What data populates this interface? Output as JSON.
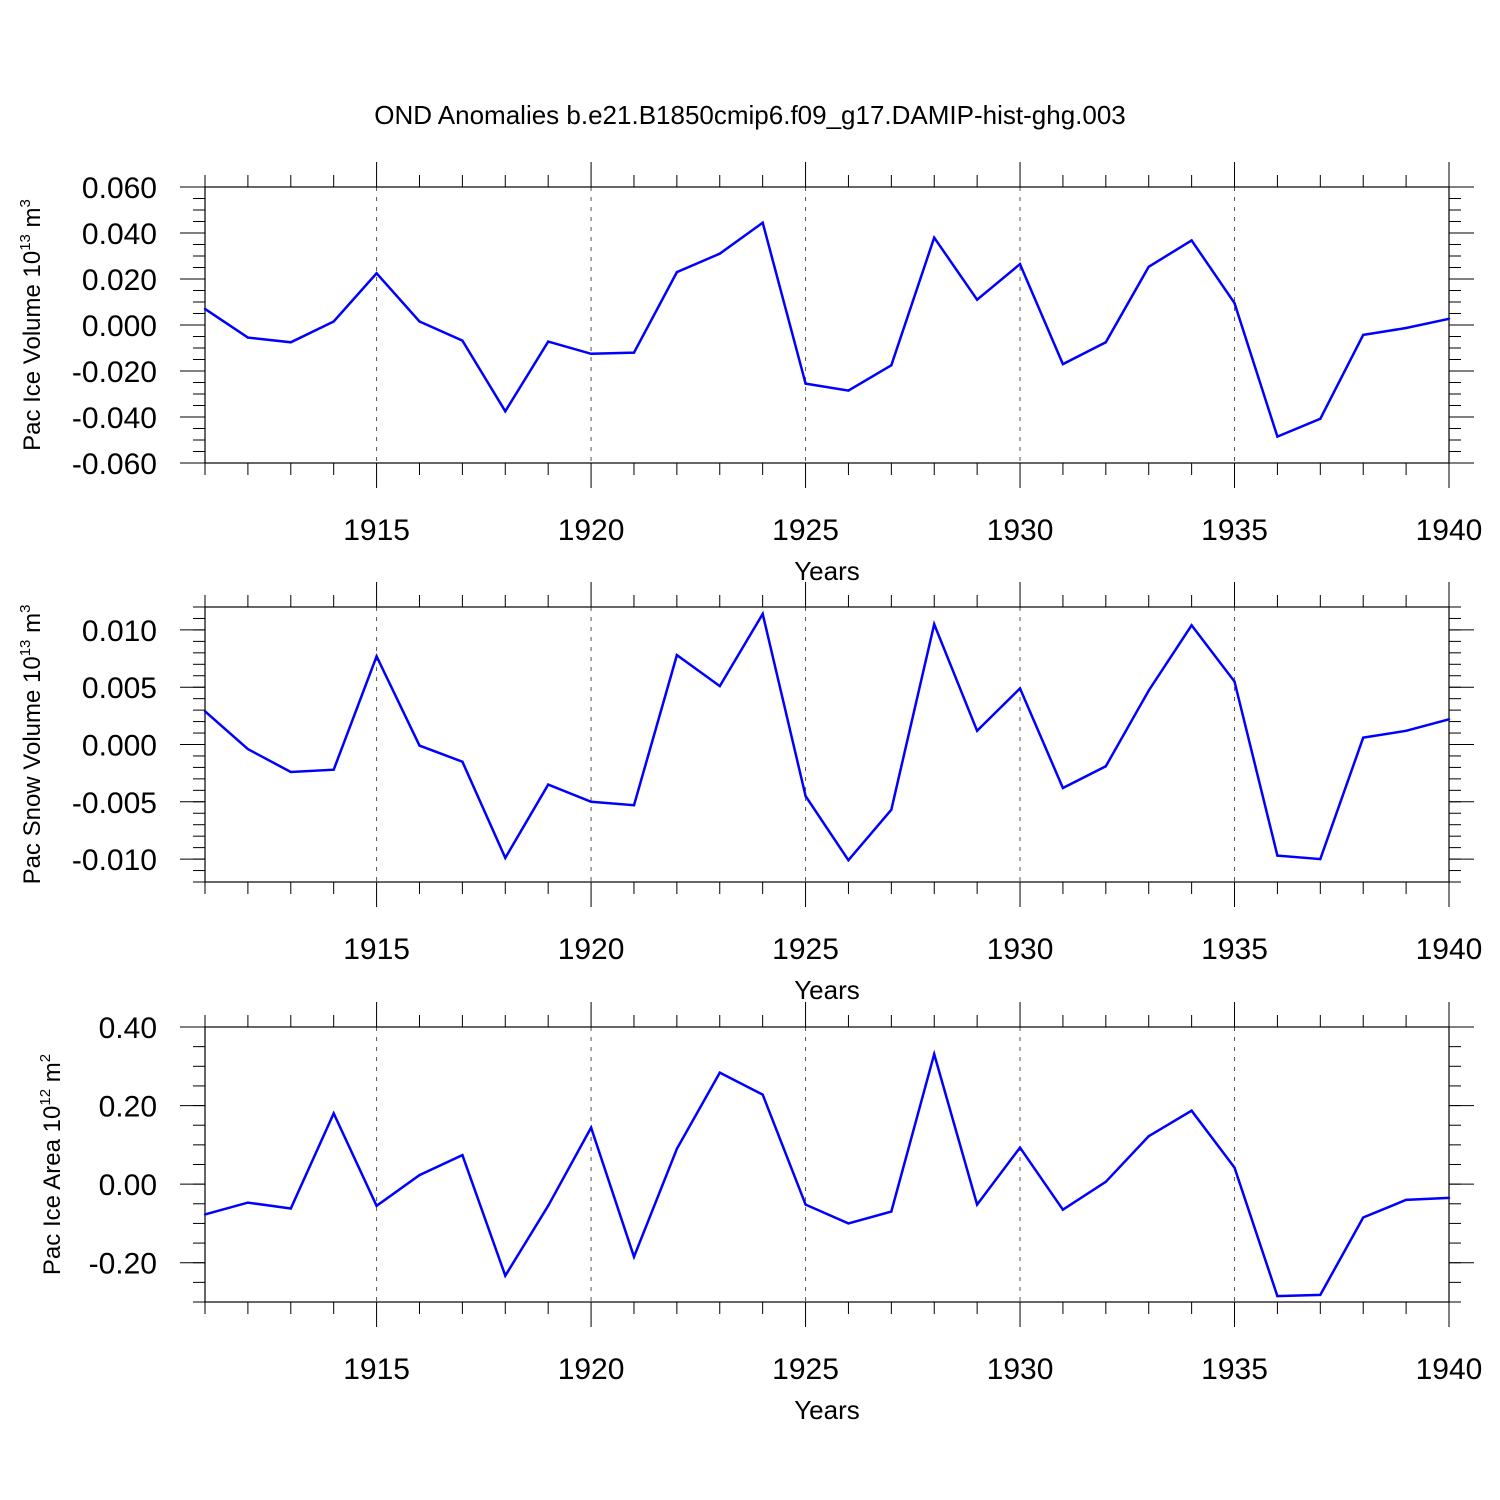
{
  "title": "OND Anomalies b.e21.B1850cmip6.f09_g17.DAMIP-hist-ghg.003",
  "colors": {
    "series": "#0000ff",
    "axis": "#000000",
    "grid": "#555555",
    "background": "#ffffff"
  },
  "chart_data": [
    {
      "type": "line",
      "name": "ice-volume",
      "ylabel": "Pac Ice Volume",
      "ylabel_unit": "10^13 m^3",
      "ylabel_base": "10",
      "ylabel_exp": "13",
      "ylabel_m": "m",
      "ylabel_m_exp": "3",
      "xlabel": "Years",
      "xlim": [
        1911,
        1940
      ],
      "ylim": [
        -0.06,
        0.06
      ],
      "x_ticks": [
        1915,
        1920,
        1925,
        1930,
        1935,
        1940
      ],
      "y_ticks": [
        -0.06,
        -0.04,
        -0.02,
        0.0,
        0.02,
        0.04,
        0.06
      ],
      "y_tick_labels": [
        "-0.060",
        "-0.040",
        "-0.020",
        "0.000",
        "0.020",
        "0.040",
        "0.060"
      ],
      "y_minor_step": 0.005,
      "grid": "vertical dashed at 1915, 1920, 1925, 1930, 1935",
      "x": [
        1911,
        1912,
        1913,
        1914,
        1915,
        1916,
        1917,
        1918,
        1919,
        1920,
        1921,
        1922,
        1923,
        1924,
        1925,
        1926,
        1927,
        1928,
        1929,
        1930,
        1931,
        1932,
        1933,
        1934,
        1935,
        1936,
        1937,
        1938,
        1939,
        1940
      ],
      "values": [
        0.007,
        -0.0055,
        -0.0075,
        0.0015,
        0.0225,
        0.0015,
        -0.0068,
        -0.0375,
        -0.0072,
        -0.0125,
        -0.012,
        0.023,
        0.031,
        0.0445,
        -0.0255,
        -0.0285,
        -0.0175,
        0.038,
        0.011,
        0.0265,
        -0.017,
        -0.0075,
        0.0253,
        0.0368,
        0.0095,
        -0.0485,
        -0.0408,
        -0.0043,
        -0.0013,
        0.0027
      ]
    },
    {
      "type": "line",
      "name": "snow-volume",
      "ylabel": "Pac Snow Volume",
      "ylabel_unit": "10^13 m^3",
      "ylabel_base": "10",
      "ylabel_exp": "13",
      "ylabel_m": "m",
      "ylabel_m_exp": "3",
      "xlabel": "Years",
      "xlim": [
        1911,
        1940
      ],
      "ylim": [
        -0.012,
        0.012
      ],
      "x_ticks": [
        1915,
        1920,
        1925,
        1930,
        1935,
        1940
      ],
      "y_ticks": [
        -0.01,
        -0.005,
        0.0,
        0.005,
        0.01
      ],
      "y_tick_labels": [
        "-0.010",
        "-0.005",
        "0.000",
        "0.005",
        "0.010"
      ],
      "y_minor_step": 0.001,
      "grid": "vertical dashed at 1915, 1920, 1925, 1930, 1935",
      "x": [
        1911,
        1912,
        1913,
        1914,
        1915,
        1916,
        1917,
        1918,
        1919,
        1920,
        1921,
        1922,
        1923,
        1924,
        1925,
        1926,
        1927,
        1928,
        1929,
        1930,
        1931,
        1932,
        1933,
        1934,
        1935,
        1936,
        1937,
        1938,
        1939,
        1940
      ],
      "values": [
        0.0029,
        -0.0004,
        -0.0024,
        -0.0022,
        0.0077,
        -0.0001,
        -0.0015,
        -0.0099,
        -0.0035,
        -0.005,
        -0.0053,
        0.0078,
        0.0051,
        0.0114,
        -0.0045,
        -0.0101,
        -0.0057,
        0.0105,
        0.0012,
        0.0049,
        -0.0038,
        -0.0019,
        0.0047,
        0.0104,
        0.0055,
        -0.0097,
        -0.01,
        0.0006,
        0.0012,
        0.0022
      ]
    },
    {
      "type": "line",
      "name": "ice-area",
      "ylabel": "Pac Ice Area",
      "ylabel_unit": "10^12 m^2",
      "ylabel_base": "10",
      "ylabel_exp": "12",
      "ylabel_m": "m",
      "ylabel_m_exp": "2",
      "xlabel": "Years",
      "xlim": [
        1911,
        1940
      ],
      "ylim": [
        -0.3,
        0.4
      ],
      "x_ticks": [
        1915,
        1920,
        1925,
        1930,
        1935,
        1940
      ],
      "y_ticks": [
        -0.2,
        0.0,
        0.2,
        0.4
      ],
      "y_tick_labels": [
        "-0.20",
        "0.00",
        "0.20",
        "0.40"
      ],
      "y_minor_step": 0.05,
      "grid": "vertical dashed at 1915, 1920, 1925, 1930, 1935",
      "x": [
        1911,
        1912,
        1913,
        1914,
        1915,
        1916,
        1917,
        1918,
        1919,
        1920,
        1921,
        1922,
        1923,
        1924,
        1925,
        1926,
        1927,
        1928,
        1929,
        1930,
        1931,
        1932,
        1933,
        1934,
        1935,
        1936,
        1937,
        1938,
        1939,
        1940
      ],
      "values": [
        -0.077,
        -0.047,
        -0.062,
        0.18,
        -0.055,
        0.023,
        0.074,
        -0.233,
        -0.055,
        0.144,
        -0.185,
        0.09,
        0.284,
        0.228,
        -0.052,
        -0.1,
        -0.07,
        0.331,
        -0.052,
        0.093,
        -0.065,
        0.006,
        0.122,
        0.187,
        0.042,
        -0.285,
        -0.282,
        -0.085,
        -0.04,
        -0.035
      ]
    }
  ]
}
